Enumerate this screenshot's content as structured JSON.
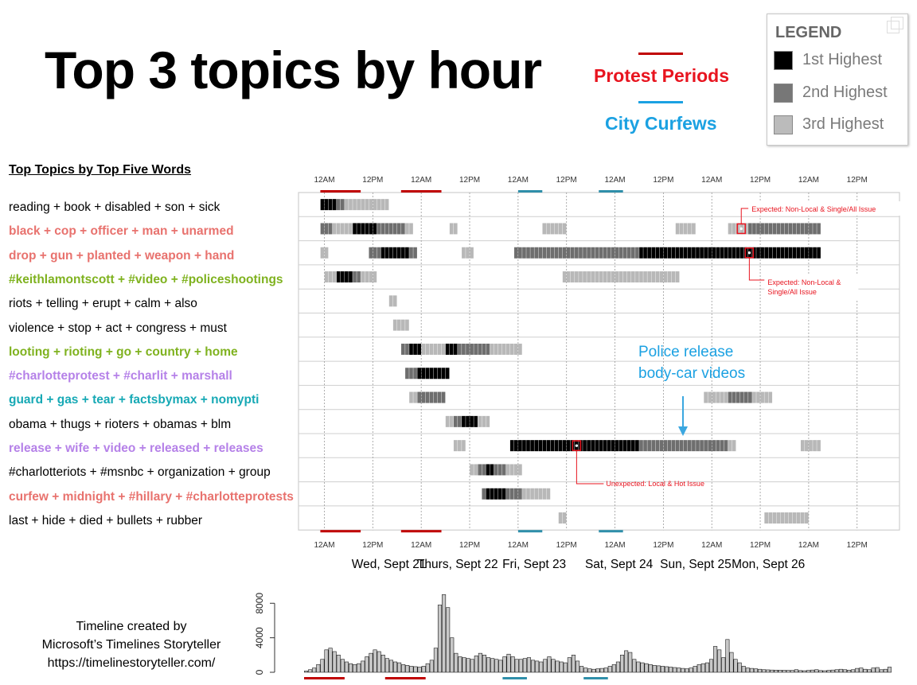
{
  "title": "Top 3 topics by hour",
  "key": {
    "protest_label": "Protest Periods",
    "protest_color": "#e8141f",
    "curfew_label": "City Curfews",
    "curfew_color": "#1ba1e2"
  },
  "legend": {
    "title": "LEGEND",
    "items": [
      {
        "label": "1st Highest",
        "color": "#000000"
      },
      {
        "label": "2nd Highest",
        "color": "#777777"
      },
      {
        "label": "3rd Highest",
        "color": "#bbbbbb"
      }
    ]
  },
  "topics_header": "Top Topics by Top Five Words",
  "footer": {
    "lines": [
      "Timeline created by",
      "Microsoft’s Timelines Storyteller",
      "https://timelinestoryteller.com/"
    ]
  },
  "chart_data": [
    {
      "type": "heatmap",
      "title": "",
      "x_axis": {
        "unit": "hours since 12AM Wed, Sept 21",
        "range": [
          -1,
          123
        ],
        "ticks": [
          {
            "h": 0,
            "label": "12AM"
          },
          {
            "h": 12,
            "label": "12PM"
          },
          {
            "h": 24,
            "label": "12AM"
          },
          {
            "h": 36,
            "label": "12PM"
          },
          {
            "h": 48,
            "label": "12AM"
          },
          {
            "h": 60,
            "label": "12PM"
          },
          {
            "h": 72,
            "label": "12AM"
          },
          {
            "h": 84,
            "label": "12PM"
          },
          {
            "h": 96,
            "label": "12AM"
          },
          {
            "h": 108,
            "label": "12PM"
          },
          {
            "h": 120,
            "label": "12AM"
          },
          {
            "h": 132,
            "label": "12PM"
          }
        ],
        "day_labels": [
          {
            "h": 16,
            "label": "Wed, Sept 21"
          },
          {
            "h": 33,
            "label": "Thurs, Sept 22"
          },
          {
            "h": 52,
            "label": "Fri, Sept 23"
          },
          {
            "h": 73,
            "label": "Sat, Sept 24"
          },
          {
            "h": 92,
            "label": "Sun, Sept 25"
          },
          {
            "h": 110,
            "label": "Mon, Sept 26"
          }
        ]
      },
      "protest_periods": [
        [
          -1,
          9
        ],
        [
          19,
          29
        ]
      ],
      "curfews": [
        [
          48,
          54
        ],
        [
          68,
          74
        ]
      ],
      "level_colors": {
        "1": "#000000",
        "2": "#6e6e6e",
        "3": "#b8b8b8"
      },
      "topics": [
        {
          "label": "reading + book + disabled + son + sick",
          "color": "#000000",
          "bold": false,
          "segments": [
            [
              -1,
              3,
              1
            ],
            [
              3,
              5,
              2
            ],
            [
              5,
              16,
              3
            ]
          ]
        },
        {
          "label": "black + cop + officer + man + unarmed",
          "color": "#e8726e",
          "bold": true,
          "segments": [
            [
              -1,
              2,
              2
            ],
            [
              2,
              7,
              3
            ],
            [
              7,
              13,
              1
            ],
            [
              13,
              20,
              2
            ],
            [
              20,
              22,
              3
            ],
            [
              31,
              33,
              3
            ],
            [
              54,
              60,
              3
            ],
            [
              87,
              92,
              3
            ],
            [
              100,
              105,
              3
            ],
            [
              105,
              123,
              2
            ]
          ]
        },
        {
          "label": "drop + gun + planted + weapon + hand",
          "color": "#e8726e",
          "bold": true,
          "segments": [
            [
              -1,
              1,
              3
            ],
            [
              11,
              14,
              2
            ],
            [
              14,
              21,
              1
            ],
            [
              21,
              23,
              2
            ],
            [
              34,
              37,
              3
            ],
            [
              47,
              78,
              2
            ],
            [
              78,
              123,
              1
            ]
          ]
        },
        {
          "label": "#keithlamontscott + #video + #policeshootings",
          "color": "#7fb21f",
          "bold": true,
          "segments": [
            [
              0,
              3,
              3
            ],
            [
              3,
              7,
              1
            ],
            [
              7,
              9,
              2
            ],
            [
              9,
              13,
              3
            ],
            [
              59,
              68,
              3
            ],
            [
              68,
              88,
              3
            ]
          ]
        },
        {
          "label": "riots + telling + erupt + calm + also",
          "color": "#000000",
          "bold": false,
          "segments": [
            [
              16,
              18,
              3
            ]
          ]
        },
        {
          "label": "violence + stop + act + congress + must",
          "color": "#000000",
          "bold": false,
          "segments": [
            [
              17,
              21,
              3
            ]
          ]
        },
        {
          "label": "looting + rioting + go + country + home",
          "color": "#7fb21f",
          "bold": true,
          "segments": [
            [
              19,
              21,
              2
            ],
            [
              21,
              24,
              1
            ],
            [
              24,
              30,
              3
            ],
            [
              30,
              33,
              1
            ],
            [
              33,
              41,
              2
            ],
            [
              41,
              49,
              3
            ]
          ]
        },
        {
          "label": "#charlotteprotest + #charlit + marshall",
          "color": "#b581e8",
          "bold": true,
          "segments": [
            [
              20,
              23,
              2
            ],
            [
              23,
              31,
              1
            ]
          ]
        },
        {
          "label": "guard + gas + tear + factsbymax + nomypti",
          "color": "#17a9b5",
          "bold": true,
          "segments": [
            [
              21,
              23,
              3
            ],
            [
              23,
              30,
              2
            ],
            [
              94,
              100,
              3
            ],
            [
              100,
              106,
              2
            ],
            [
              106,
              111,
              3
            ]
          ]
        },
        {
          "label": "obama + thugs + rioters + obamas + blm",
          "color": "#000000",
          "bold": false,
          "segments": [
            [
              30,
              32,
              3
            ],
            [
              32,
              34,
              2
            ],
            [
              34,
              38,
              1
            ],
            [
              38,
              41,
              3
            ]
          ]
        },
        {
          "label": "release + wife + video + released + releases",
          "color": "#b581e8",
          "bold": true,
          "segments": [
            [
              32,
              35,
              3
            ],
            [
              46,
              78,
              1
            ],
            [
              78,
              100,
              2
            ],
            [
              100,
              102,
              3
            ],
            [
              118,
              123,
              3
            ]
          ]
        },
        {
          "label": "#charlotteriots + #msnbc + organization + group",
          "color": "#000000",
          "bold": false,
          "segments": [
            [
              36,
              38,
              3
            ],
            [
              38,
              40,
              2
            ],
            [
              40,
              42,
              1
            ],
            [
              42,
              45,
              2
            ],
            [
              45,
              49,
              3
            ]
          ]
        },
        {
          "label": "curfew + midnight + #hillary + #charlotteprotests",
          "color": "#e8726e",
          "bold": true,
          "segments": [
            [
              39,
              40,
              2
            ],
            [
              40,
              45,
              1
            ],
            [
              45,
              49,
              2
            ],
            [
              49,
              56,
              3
            ]
          ]
        },
        {
          "label": "last + hide + died + bullets + rubber",
          "color": "#000000",
          "bold": false,
          "segments": [
            [
              58,
              60,
              3
            ],
            [
              109,
              120,
              3
            ]
          ]
        }
      ],
      "annotations": [
        {
          "text": "Expected: Non-Local & Single/All Issue",
          "color": "#e8141f"
        },
        {
          "text": "Expected: Non-Local &",
          "color": "#e8141f"
        },
        {
          "text": "Single/All Issue",
          "color": "#e8141f"
        },
        {
          "text": "Unexpected: Local & Hot Issue",
          "color": "#e8141f"
        },
        {
          "text": "Police release",
          "color": "#1ba1e2"
        },
        {
          "text": "body-car videos",
          "color": "#1ba1e2"
        }
      ]
    },
    {
      "type": "bar",
      "title": "",
      "x": "hours since 12AM Wed, Sept 21",
      "ylim": [
        0,
        9500
      ],
      "yticks": [
        {
          "v": 0,
          "label": "0"
        },
        {
          "v": 4000,
          "label": "4000"
        },
        {
          "v": 8000,
          "label": "8000"
        }
      ],
      "values": [
        150,
        300,
        500,
        900,
        1500,
        2600,
        2800,
        2400,
        2000,
        1500,
        1200,
        1000,
        900,
        1000,
        1300,
        1800,
        2200,
        2600,
        2400,
        2000,
        1600,
        1400,
        1200,
        1100,
        900,
        800,
        700,
        650,
        600,
        700,
        1000,
        1400,
        2800,
        7800,
        9000,
        7500,
        4000,
        2200,
        1800,
        1700,
        1600,
        1500,
        1900,
        2200,
        2000,
        1700,
        1600,
        1500,
        1400,
        1800,
        2100,
        1800,
        1500,
        1500,
        1600,
        1700,
        1400,
        1300,
        1200,
        1500,
        1800,
        1500,
        1300,
        1200,
        1100,
        1700,
        2000,
        1300,
        700,
        500,
        400,
        350,
        400,
        450,
        500,
        700,
        900,
        1200,
        2000,
        2500,
        2300,
        1500,
        1200,
        1100,
        1000,
        900,
        800,
        750,
        700,
        650,
        600,
        550,
        500,
        450,
        400,
        500,
        700,
        900,
        1000,
        1100,
        1500,
        3000,
        2600,
        1700,
        3800,
        2300,
        1500,
        1100,
        700,
        500,
        450,
        400,
        350,
        300,
        280,
        260,
        250,
        240,
        230,
        220,
        220,
        300,
        200,
        180,
        220,
        260,
        300,
        200,
        180,
        220,
        260,
        300,
        350,
        300,
        250,
        300,
        450,
        500,
        350,
        300,
        500,
        550,
        300,
        350,
        600
      ]
    }
  ]
}
